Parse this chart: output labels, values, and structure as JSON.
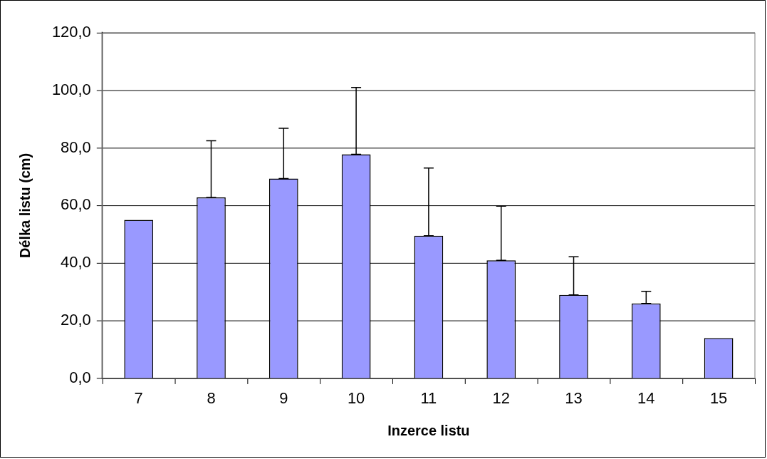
{
  "chart_data": {
    "type": "bar",
    "xlabel": "Inzerce listu",
    "ylabel": "Délka listu (cm)",
    "categories": [
      "7",
      "8",
      "9",
      "10",
      "11",
      "12",
      "13",
      "14",
      "15"
    ],
    "values": [
      55.0,
      62.8,
      69.4,
      77.8,
      49.5,
      41.0,
      29.0,
      26.0,
      14.0
    ],
    "errors": [
      null,
      [
        62.8,
        82.5
      ],
      [
        69.4,
        86.8
      ],
      [
        77.8,
        101.0
      ],
      [
        49.5,
        73.0
      ],
      [
        41.0,
        59.8
      ],
      [
        29.0,
        42.2
      ],
      [
        26.0,
        30.2
      ],
      null
    ],
    "color": "#9999ff",
    "ylim": [
      0,
      120
    ],
    "yticks": [
      {
        "value": 0,
        "label": "0,0"
      },
      {
        "value": 20,
        "label": "20,0"
      },
      {
        "value": 40,
        "label": "40,0"
      },
      {
        "value": 60,
        "label": "60,0"
      },
      {
        "value": 80,
        "label": "80,0"
      },
      {
        "value": 100,
        "label": "100,0"
      },
      {
        "value": 120,
        "label": "120,0"
      }
    ],
    "grid": "y",
    "legend": false
  }
}
